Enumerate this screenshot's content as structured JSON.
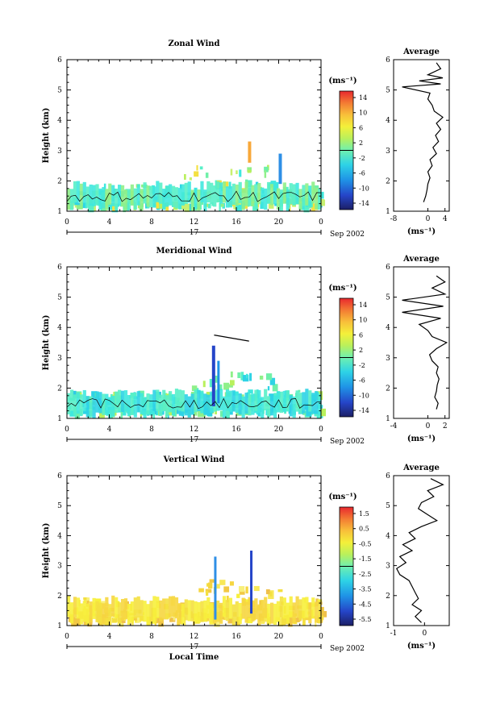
{
  "chart_data": [
    {
      "type": "heatmap",
      "title": "Zonal Wind",
      "ylabel": "Height (km)",
      "ylim": [
        1,
        6
      ],
      "yticks": [
        "1",
        "2",
        "3",
        "4",
        "5",
        "6"
      ],
      "xticks": [
        "0",
        "4",
        "8",
        "12",
        "16",
        "20",
        "0"
      ],
      "day_label": "17",
      "date_label": "Sep 2002",
      "colorbar": {
        "unit": "(ms⁻¹)",
        "ticks": [
          "14",
          "10",
          "6",
          "2",
          "-2",
          "-6",
          "-10",
          "-14"
        ]
      },
      "profile": {
        "title": "Average",
        "xlabel": "(ms⁻¹)",
        "xticks": [
          "-8",
          "0",
          "4"
        ],
        "xlim": [
          -8,
          5
        ],
        "heights": [
          1.3,
          1.5,
          1.7,
          1.9,
          2.1,
          2.3,
          2.5,
          2.7,
          2.9,
          3.1,
          3.3,
          3.5,
          3.7,
          3.9,
          4.1,
          4.3,
          4.5,
          4.7,
          4.9,
          5.1,
          5.2,
          5.3,
          5.4,
          5.5,
          5.7,
          5.9
        ],
        "values": [
          -1,
          -0.5,
          -0.2,
          0,
          0.5,
          0,
          1,
          0.5,
          2,
          1.2,
          2.5,
          1.8,
          3,
          2,
          3.5,
          1.5,
          1,
          0,
          0.5,
          -6,
          3,
          -2,
          3.5,
          0,
          3,
          2
        ]
      }
    },
    {
      "type": "heatmap",
      "title": "Meridional Wind",
      "ylabel": "Height (km)",
      "ylim": [
        1,
        6
      ],
      "yticks": [
        "1",
        "2",
        "3",
        "4",
        "5",
        "6"
      ],
      "xticks": [
        "0",
        "4",
        "8",
        "12",
        "16",
        "20",
        "0"
      ],
      "day_label": "17",
      "date_label": "Sep 2002",
      "colorbar": {
        "unit": "(ms⁻¹)",
        "ticks": [
          "14",
          "10",
          "6",
          "2",
          "-2",
          "-6",
          "-10",
          "-14"
        ]
      },
      "profile": {
        "title": "Average",
        "xlabel": "(ms⁻¹)",
        "xticks": [
          "-4",
          "0",
          "2"
        ],
        "xlim": [
          -4,
          2.5
        ],
        "heights": [
          1.3,
          1.5,
          1.7,
          1.9,
          2.1,
          2.3,
          2.5,
          2.7,
          2.9,
          3.1,
          3.3,
          3.5,
          3.7,
          3.9,
          4.1,
          4.3,
          4.5,
          4.7,
          4.9,
          5.1,
          5.3,
          5.5,
          5.7
        ],
        "values": [
          1,
          1.2,
          0.8,
          1,
          1.1,
          1.3,
          1,
          1.2,
          0.5,
          0.2,
          1,
          2.2,
          0.5,
          0,
          -1,
          1.5,
          -3,
          1.8,
          -3,
          2,
          0.5,
          2,
          1
        ]
      }
    },
    {
      "type": "heatmap",
      "title": "Vertical Wind",
      "ylabel": "Height (km)",
      "xlabel": "Local Time",
      "ylim": [
        1,
        6
      ],
      "yticks": [
        "1",
        "2",
        "3",
        "4",
        "5",
        "6"
      ],
      "xticks": [
        "0",
        "4",
        "8",
        "12",
        "16",
        "20",
        "0"
      ],
      "day_label": "17",
      "date_label": "Sep 2002",
      "colorbar": {
        "unit": "(ms⁻¹)",
        "ticks": [
          "1.5",
          "0.5",
          "-0.5",
          "-1.5",
          "-2.5",
          "-3.5",
          "-4.5",
          "-5.5"
        ]
      },
      "profile": {
        "title": "Average",
        "xlabel": "(ms⁻¹)",
        "xticks": [
          "-1",
          "0"
        ],
        "xlim": [
          -1,
          0.8
        ],
        "heights": [
          1.1,
          1.3,
          1.5,
          1.7,
          1.9,
          2.1,
          2.3,
          2.5,
          2.7,
          2.9,
          3.1,
          3.3,
          3.5,
          3.7,
          3.9,
          4.1,
          4.3,
          4.5,
          4.7,
          4.9,
          5.1,
          5.3,
          5.5,
          5.7,
          5.9
        ],
        "values": [
          -0.1,
          -0.3,
          -0.1,
          -0.4,
          -0.2,
          -0.3,
          -0.4,
          -0.5,
          -0.8,
          -0.9,
          -0.6,
          -0.8,
          -0.4,
          -0.7,
          -0.3,
          -0.5,
          -0.1,
          0.4,
          0.1,
          -0.2,
          -0.1,
          0.3,
          0.1,
          0.6,
          0.2
        ]
      }
    }
  ]
}
